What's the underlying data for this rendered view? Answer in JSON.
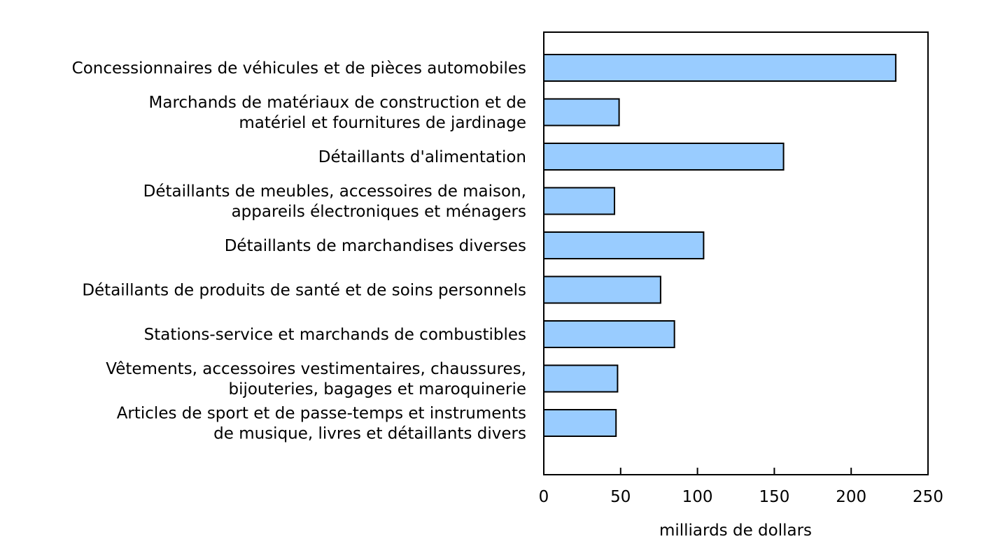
{
  "chart_data": {
    "type": "bar",
    "orientation": "horizontal",
    "categories": [
      [
        "Concessionnaires de véhicules et de pièces automobiles"
      ],
      [
        "Marchands de matériaux de construction et de",
        "matériel et fournitures de jardinage"
      ],
      [
        "Détaillants d'alimentation"
      ],
      [
        "Détaillants de meubles, accessoires de maison,",
        "appareils électroniques et ménagers"
      ],
      [
        "Détaillants de marchandises diverses"
      ],
      [
        "Détaillants de produits de santé et de soins personnels"
      ],
      [
        "Stations-service et marchands de combustibles"
      ],
      [
        "Vêtements, accessoires vestimentaires, chaussures,",
        "bijouteries, bagages et maroquinerie"
      ],
      [
        "Articles de sport et de passe-temps et instruments",
        "de musique, livres et détaillants divers"
      ]
    ],
    "values": [
      229,
      49,
      156,
      46,
      104,
      76,
      85,
      48,
      47
    ],
    "xlabel": "milliards de dollars",
    "xlim": [
      0,
      250
    ],
    "xticks": [
      0,
      50,
      100,
      150,
      200,
      250
    ],
    "xtick_labels": [
      "0",
      "50",
      "100",
      "150",
      "200",
      "250"
    ],
    "grid": false,
    "bar_color": "#99ccff",
    "bar_edge_color": "#000000"
  }
}
